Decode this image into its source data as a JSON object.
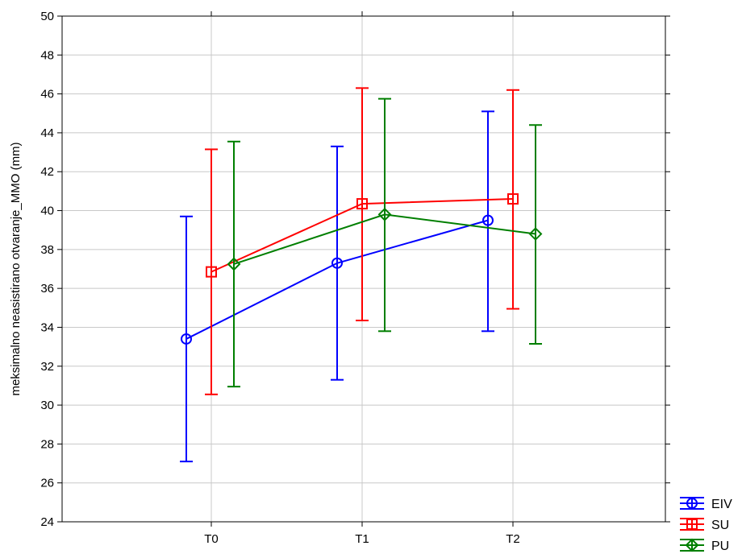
{
  "chart_data": {
    "type": "line",
    "subtype": "means-with-error-bars",
    "title": "",
    "xlabel": "",
    "ylabel": "meksimalno neasistirano otvaranje_MMO (mm)",
    "categories": [
      "T0",
      "T1",
      "T2"
    ],
    "ylim": [
      24,
      50
    ],
    "yticks": [
      24,
      26,
      28,
      30,
      32,
      34,
      36,
      38,
      40,
      42,
      44,
      46,
      48,
      50
    ],
    "grid": true,
    "legend_position": "bottom-right",
    "series": [
      {
        "name": "EIV",
        "color": "#0000ff",
        "marker": "circle",
        "values": [
          33.4,
          37.3,
          39.5
        ],
        "lower": [
          27.1,
          31.3,
          33.8
        ],
        "upper": [
          39.7,
          43.3,
          45.1
        ]
      },
      {
        "name": "SU",
        "color": "#ff0000",
        "marker": "square",
        "values": [
          36.85,
          40.35,
          40.6
        ],
        "lower": [
          30.55,
          34.35,
          34.95
        ],
        "upper": [
          43.15,
          46.3,
          46.2
        ]
      },
      {
        "name": "PU",
        "color": "#007f00",
        "marker": "diamond",
        "values": [
          37.25,
          39.8,
          38.8
        ],
        "lower": [
          30.95,
          33.8,
          33.15
        ],
        "upper": [
          43.55,
          45.75,
          44.4
        ]
      }
    ]
  }
}
